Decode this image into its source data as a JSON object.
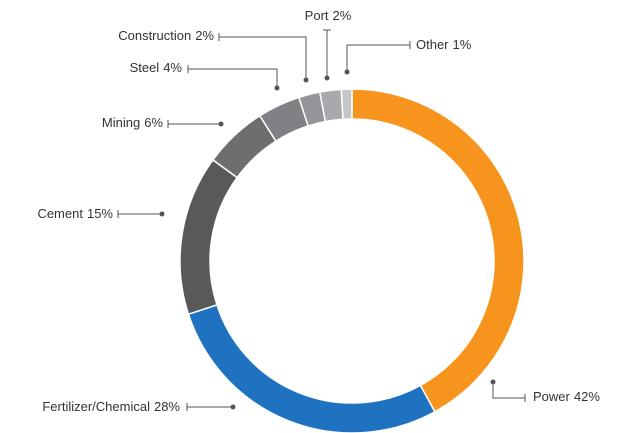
{
  "chart_data": {
    "type": "donut",
    "categories": [
      "Power",
      "Fertilizer/Chemical",
      "Cement",
      "Mining",
      "Steel",
      "Construction",
      "Port",
      "Other"
    ],
    "values": [
      42,
      28,
      15,
      6,
      4,
      2,
      2,
      1
    ],
    "value_labels": [
      "42%",
      "28%",
      "15%",
      "6%",
      "4%",
      "2%",
      "2%",
      "1%"
    ],
    "colors": [
      "#f7941d",
      "#1f72c0",
      "#58595b",
      "#6d6e70",
      "#808184",
      "#939598",
      "#a7a9ac",
      "#c4c6c8"
    ]
  }
}
